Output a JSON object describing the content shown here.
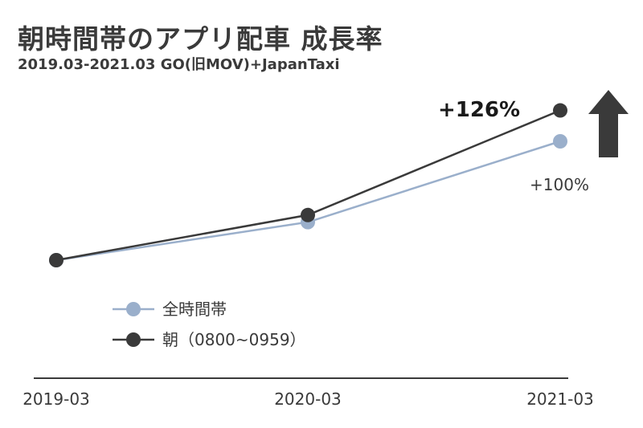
{
  "chart_data": {
    "type": "line",
    "title": "朝時間帯のアプリ配車 成長率",
    "subtitle": "2019.03-2021.03 GO(旧MOV)+JapanTaxi",
    "categories": [
      "2019-03",
      "2020-03",
      "2021-03"
    ],
    "series": [
      {
        "name": "全時間帯",
        "values": [
          0,
          32,
          100
        ],
        "color": "#9aafcb"
      },
      {
        "name": "朝（0800~0959）",
        "values": [
          0,
          38,
          126
        ],
        "color": "#3a3a3a"
      }
    ],
    "annotations": [
      {
        "text": "+126%",
        "series": 1,
        "bold": true
      },
      {
        "text": "+100%",
        "series": 0,
        "bold": false
      }
    ],
    "ylim": [
      -100,
      150
    ],
    "grid": false,
    "legend": "bottom-left",
    "decoration": "up-arrow"
  }
}
